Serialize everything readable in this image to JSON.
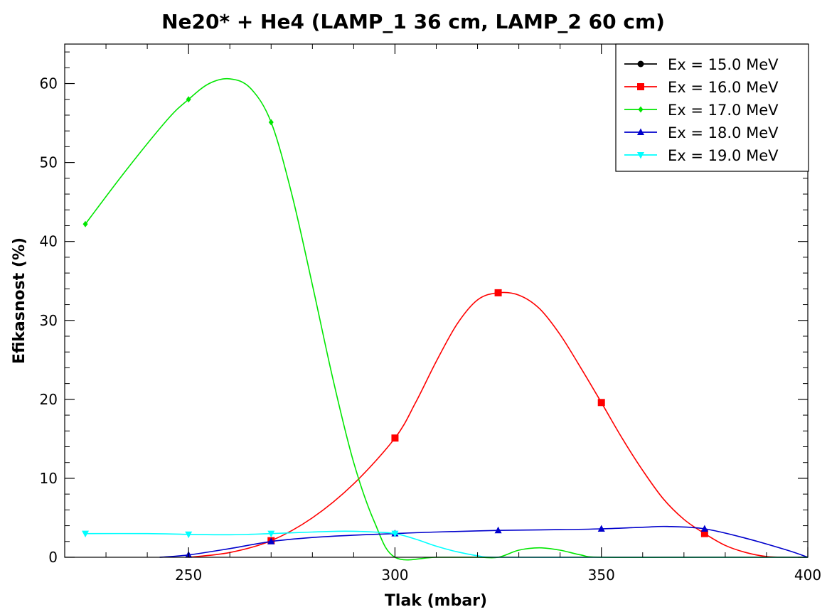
{
  "chart_data": {
    "type": "line",
    "title": "Ne20* + He4 (LAMP_1 36 cm, LAMP_2 60 cm)",
    "xlabel": "Tlak (mbar)",
    "ylabel": "Efikasnost (%)",
    "xlim": [
      220,
      400
    ],
    "ylim": [
      0,
      65
    ],
    "xticks": [
      250,
      300,
      350,
      400
    ],
    "xtick_labels": [
      "250",
      "300",
      "350",
      "400"
    ],
    "yticks": [
      0,
      10,
      20,
      30,
      40,
      50,
      60
    ],
    "ytick_labels": [
      "0",
      "10",
      "20",
      "30",
      "40",
      "50",
      "60"
    ],
    "grid": false,
    "legend_position": "top-right",
    "series": [
      {
        "name": "Ex = 15.0 MeV",
        "color": "#000000",
        "marker": "circle",
        "x": [],
        "y": [],
        "curve_x": [],
        "curve_y": []
      },
      {
        "name": "Ex = 16.0 MeV",
        "color": "#ff0000",
        "marker": "square",
        "x": [
          270,
          300,
          325,
          350,
          375
        ],
        "y": [
          2.1,
          15.1,
          33.5,
          19.6,
          3.0
        ],
        "curve_x": [
          250,
          260,
          270,
          280,
          290,
          300,
          305,
          310,
          315,
          320,
          325,
          330,
          335,
          340,
          345,
          350,
          355,
          360,
          365,
          370,
          375,
          380,
          385,
          390,
          395,
          400
        ],
        "curve_y": [
          0,
          0.6,
          2.1,
          5.0,
          9.3,
          15.1,
          19.6,
          24.8,
          29.5,
          32.6,
          33.5,
          33.2,
          31.5,
          28.2,
          24.0,
          19.6,
          15.1,
          11.0,
          7.4,
          4.8,
          3.0,
          1.5,
          0.6,
          0.1,
          0,
          0
        ]
      },
      {
        "name": "Ex = 17.0 MeV",
        "color": "#00e600",
        "marker": "diamond",
        "x": [
          225,
          250,
          270
        ],
        "y": [
          42.2,
          58.0,
          55.1
        ],
        "curve_x": [
          225,
          235,
          245,
          250,
          255,
          260,
          265,
          270,
          275,
          280,
          285,
          290,
          295,
          300,
          310,
          320,
          325,
          330,
          335,
          340,
          345,
          350,
          375,
          400
        ],
        "curve_y": [
          42.2,
          49.1,
          55.5,
          58.0,
          60.0,
          60.6,
          59.4,
          55.1,
          46.0,
          34.5,
          22.5,
          12.0,
          4.5,
          0,
          0,
          0,
          0,
          0.9,
          1.2,
          0.9,
          0.3,
          0,
          0,
          0
        ]
      },
      {
        "name": "Ex = 18.0 MeV",
        "color": "#0000cc",
        "marker": "triangle-up",
        "x": [
          250,
          270,
          300,
          325,
          350,
          375
        ],
        "y": [
          0.3,
          2.0,
          3.0,
          3.4,
          3.6,
          3.6
        ],
        "curve_x": [
          243,
          250,
          260,
          270,
          280,
          290,
          300,
          310,
          325,
          340,
          350,
          360,
          366,
          375,
          385,
          395,
          400
        ],
        "curve_y": [
          0,
          0.3,
          1.1,
          2.0,
          2.5,
          2.8,
          3.0,
          3.2,
          3.4,
          3.5,
          3.6,
          3.8,
          3.9,
          3.6,
          2.4,
          0.9,
          0
        ]
      },
      {
        "name": "Ex = 19.0 MeV",
        "color": "#00ffff",
        "marker": "triangle-down",
        "x": [
          225,
          250,
          270,
          300
        ],
        "y": [
          3.0,
          2.9,
          3.0,
          3.0
        ],
        "curve_x": [
          225,
          240,
          250,
          260,
          270,
          280,
          288,
          295,
          300,
          305,
          310,
          315,
          320,
          325,
          350,
          375,
          400
        ],
        "curve_y": [
          3.0,
          3.0,
          2.9,
          2.85,
          3.0,
          3.2,
          3.3,
          3.2,
          3.0,
          2.3,
          1.4,
          0.7,
          0.2,
          0,
          0,
          0,
          0
        ]
      }
    ]
  }
}
